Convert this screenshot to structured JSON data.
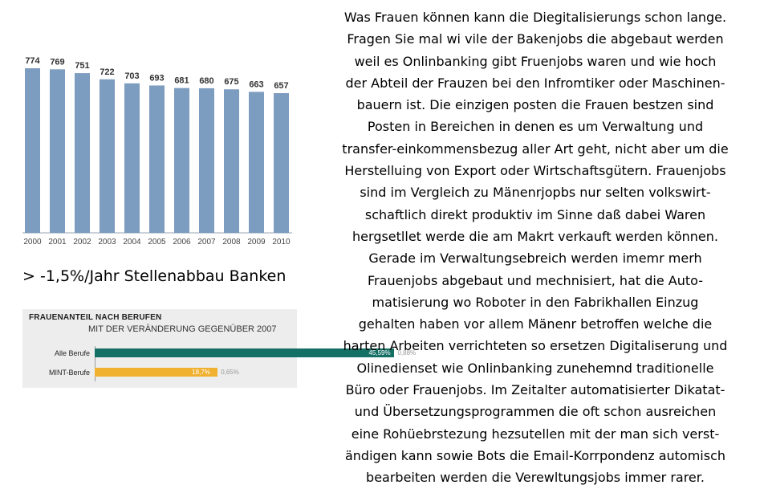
{
  "chart_data": [
    {
      "type": "bar",
      "categories": [
        "2000",
        "2001",
        "2002",
        "2003",
        "2004",
        "2005",
        "2006",
        "2007",
        "2008",
        "2009",
        "2010"
      ],
      "values": [
        774,
        769,
        751,
        722,
        703,
        693,
        681,
        680,
        675,
        663,
        657
      ],
      "bar_color": "#7c9cc0",
      "data_labels": true,
      "grid": false,
      "title": "",
      "xlabel": "",
      "ylabel": ""
    },
    {
      "type": "bar",
      "orientation": "horizontal",
      "title": "FRAUENANTEIL NACH BERUFEN",
      "subtitle": "MIT DER VERÄNDERUNG GEGENÜBER 2007",
      "categories": [
        "Alle Berufe",
        "MINT-Berufe"
      ],
      "values": [
        45.59,
        18.7
      ],
      "value_labels": [
        "45,59%",
        "18,7%"
      ],
      "changes": [
        "0,88%",
        "0,65%"
      ],
      "colors": [
        "#146f64",
        "#f0b030"
      ],
      "xlim": [
        0,
        100
      ]
    }
  ],
  "caption": "> -1,5%/Jahr Stellenabbau Banken",
  "body_lines": [
    "Was Frauen können kann die Diegitalisierungs schon lange.",
    "Fragen Sie mal wi vile der Bakenjobs die abgebaut werden",
    "weil es Onlinbanking gibt Fruenjobs waren und wie hoch",
    "der Abteil der Frauzen bei den Infromtiker oder Maschinen-",
    "bauern  ist. Die einzigen posten die Frauen bestzen sind",
    "Posten in Bereichen in denen es um Verwaltung und",
    "transfer-einkommensbezug aller Art geht, nicht aber um die",
    "Herstelluing von Export oder Wirtschaftsgütern. Frauenjobs",
    "sind im Vergleich zu Mänenrjopbs nur selten volkswirt-",
    "schaftlich direkt produktiv im Sinne daß dabei Waren",
    "hergsetllet werde die am Makrt verkauft werden können.",
    "Gerade im Verwaltungsebreich werden imemr merh",
    "Frauenjobs abgebaut  und mechnisiert, hat die Auto-",
    "matisierung  wo Roboter in den Fabrikhallen Einzug",
    "gehalten haben vor allem Mänenr betroffen welche die",
    "harten Arbeiten verrichteten so ersetzen Digitaliserung und",
    "Olinedienset wie Onlinbanking zunehemnd traditionelle",
    "Büro oder Frauenjobs. Im Zeitalter automatisierter Dikatat-",
    "und Übersetzungsprogrammen die oft schon ausreichen",
    "eine Rohüebrstezung hezsutellen mit der man sich verst-",
    "ändigen kann sowie Bots die Email-Korrpondenz automisch",
    "bearbeiten werden die Verewltungsjobs immer rarer."
  ]
}
